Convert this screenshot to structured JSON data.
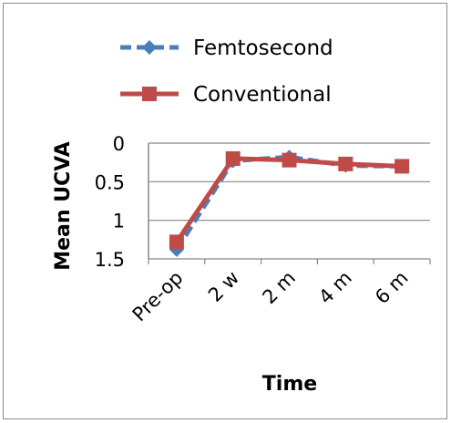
{
  "chart_data": {
    "type": "line",
    "categories": [
      "Pre-op",
      "2 w",
      "2 m",
      "4 m",
      "6 m"
    ],
    "series": [
      {
        "name": "Femtosecond",
        "values": [
          1.38,
          0.23,
          0.18,
          0.29,
          0.3
        ],
        "color": "#4a7ebb",
        "marker": "diamond",
        "line_style": "dashed"
      },
      {
        "name": "Conventional",
        "values": [
          1.28,
          0.2,
          0.22,
          0.27,
          0.3
        ],
        "color": "#be4b48",
        "marker": "square",
        "line_style": "solid"
      }
    ],
    "xlabel": "Time",
    "ylabel": "Mean UCVA",
    "ylim": [
      0,
      1.5
    ],
    "y_inverted": true,
    "yticks": [
      "0",
      "0.5",
      "1",
      "1.5"
    ],
    "grid": true,
    "legend_position": "top"
  }
}
